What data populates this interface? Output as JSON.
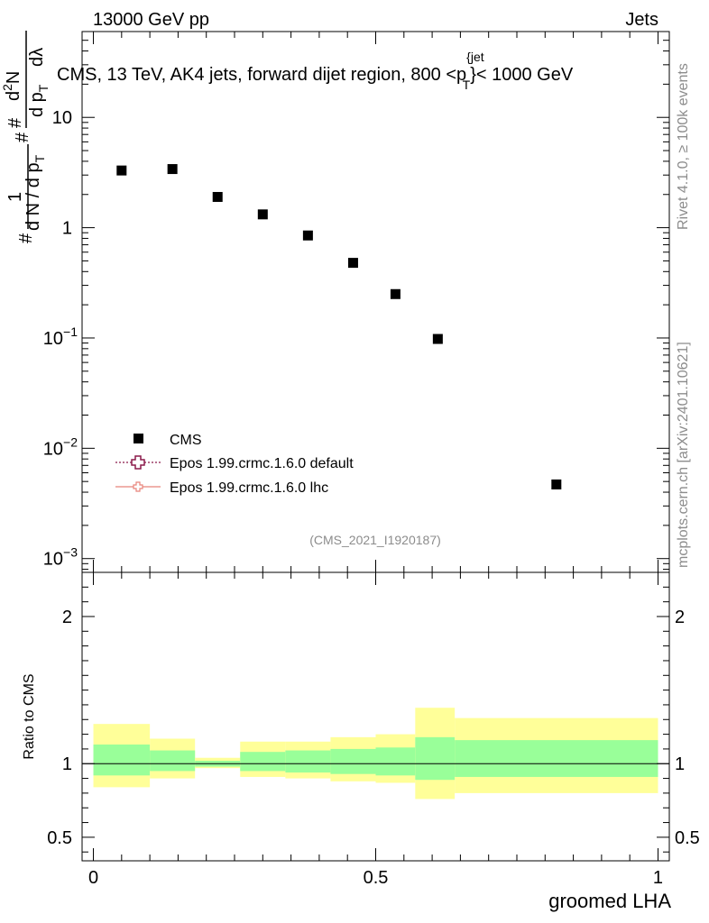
{
  "header": {
    "left": "13000 GeV pp",
    "right": "Jets"
  },
  "plot_title": {
    "main": "CMS, 13 TeV, AK4 jets, forward dijet region, 800 <p",
    "sup": "{jet",
    "sub": "T",
    "tail": "}< 1000 GeV"
  },
  "y_axis_label": {
    "hash1": "#",
    "one": "1",
    "dN_a": "d N / d p",
    "dN_a_sub": "T",
    "hash2": "#",
    "dp": "d p",
    "dp_sub": "T",
    "hash3": "#",
    "d2N": "d",
    "d2N_sup": "2",
    "d2N_tail": "N",
    "dlambda": "dλ"
  },
  "side_labels": {
    "rivet": "Rivet 4.1.0, ≥ 100k events",
    "mcplots": "mcplots.cern.ch [arXiv:2401.10621]"
  },
  "analysis_id": "(CMS_2021_I1920187)",
  "legend": [
    {
      "label": "CMS",
      "marker": "square",
      "color": "#000000"
    },
    {
      "label": "Epos 1.99.crmc.1.6.0 default",
      "marker": "open-cross",
      "color": "#8b1a4a"
    },
    {
      "label": "Epos 1.99.crmc.1.6.0 lhc",
      "marker": "cross-line",
      "color": "#e8837a"
    }
  ],
  "colors": {
    "band_outer": "#ffff99",
    "band_inner": "#99ff99",
    "data": "#000000"
  },
  "chart_data": [
    {
      "type": "scatter",
      "title": "CMS, 13 TeV, AK4 jets, forward dijet region, 800 < pT^{jet} < 1000 GeV",
      "xlabel": "groomed LHA",
      "ylabel": "1/dN/dpT · d2N/dpT dλ",
      "yscale": "log",
      "xlim": [
        -0.02,
        1.02
      ],
      "ylim": [
        0.00075,
        60
      ],
      "y_ticks": [
        {
          "value": 0.001,
          "base": "10",
          "exp": "−3"
        },
        {
          "value": 0.01,
          "base": "10",
          "exp": "−2"
        },
        {
          "value": 0.1,
          "base": "10",
          "exp": "−1"
        },
        {
          "value": 1,
          "base": "1",
          "exp": ""
        },
        {
          "value": 10,
          "base": "10",
          "exp": ""
        }
      ],
      "series": [
        {
          "name": "CMS",
          "x": [
            0.05,
            0.14,
            0.22,
            0.3,
            0.38,
            0.46,
            0.535,
            0.61,
            0.82
          ],
          "y": [
            3.3,
            3.4,
            1.9,
            1.32,
            0.85,
            0.48,
            0.25,
            0.098,
            0.0047
          ]
        }
      ]
    },
    {
      "type": "area",
      "ylabel": "Ratio to CMS",
      "xlabel": "groomed LHA",
      "xlim": [
        -0.02,
        1.02
      ],
      "ylim": [
        0.34,
        2.3
      ],
      "x_ticks": [
        {
          "value": 0,
          "label": "0"
        },
        {
          "value": 0.5,
          "label": "0.5"
        },
        {
          "value": 1,
          "label": "1"
        }
      ],
      "y_ticks": [
        {
          "value": 0.5,
          "label": "0.5"
        },
        {
          "value": 1,
          "label": "1"
        },
        {
          "value": 2,
          "label": "2"
        }
      ],
      "reference_line": 1,
      "bins": [
        {
          "lo": 0.0,
          "hi": 0.1,
          "inner": [
            0.92,
            1.13
          ],
          "outer": [
            0.84,
            1.27
          ]
        },
        {
          "lo": 0.1,
          "hi": 0.18,
          "inner": [
            0.95,
            1.09
          ],
          "outer": [
            0.9,
            1.17
          ]
        },
        {
          "lo": 0.18,
          "hi": 0.26,
          "inner": [
            0.98,
            1.02
          ],
          "outer": [
            0.97,
            1.04
          ]
        },
        {
          "lo": 0.26,
          "hi": 0.34,
          "inner": [
            0.95,
            1.08
          ],
          "outer": [
            0.91,
            1.15
          ]
        },
        {
          "lo": 0.34,
          "hi": 0.42,
          "inner": [
            0.94,
            1.09
          ],
          "outer": [
            0.9,
            1.15
          ]
        },
        {
          "lo": 0.42,
          "hi": 0.5,
          "inner": [
            0.93,
            1.1
          ],
          "outer": [
            0.88,
            1.18
          ]
        },
        {
          "lo": 0.5,
          "hi": 0.57,
          "inner": [
            0.92,
            1.11
          ],
          "outer": [
            0.87,
            1.2
          ]
        },
        {
          "lo": 0.57,
          "hi": 0.64,
          "inner": [
            0.89,
            1.18
          ],
          "outer": [
            0.76,
            1.38
          ]
        },
        {
          "lo": 0.64,
          "hi": 1.0,
          "inner": [
            0.91,
            1.16
          ],
          "outer": [
            0.8,
            1.31
          ]
        }
      ]
    }
  ]
}
